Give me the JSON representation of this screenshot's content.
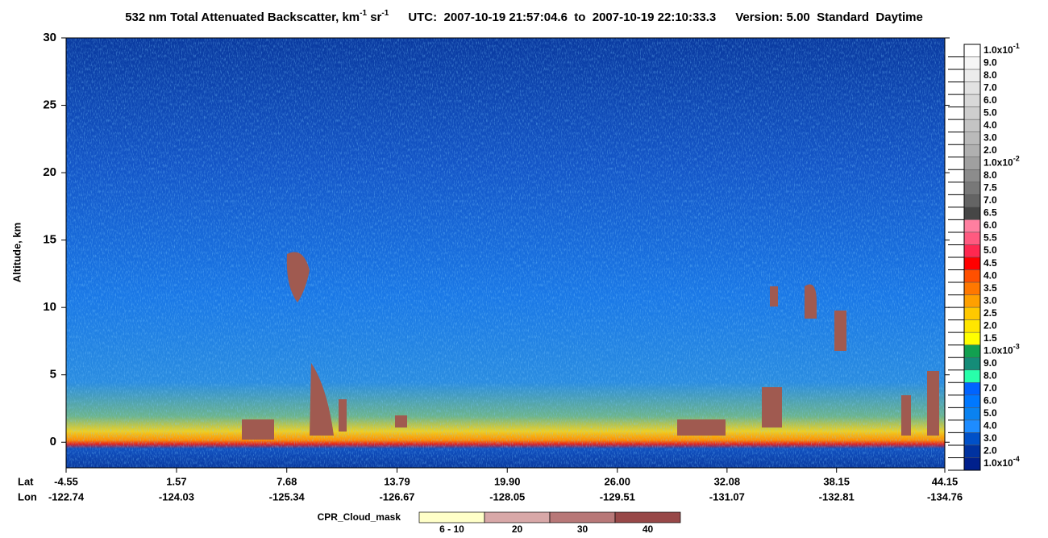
{
  "chart_data": {
    "type": "curtain",
    "title": {
      "product": "532 nm Total Attenuated Backscatter, km",
      "unit_exp_1": "-1",
      "unit_sr": " sr",
      "unit_exp_2": "-1",
      "utc": "UTC:  2007-10-19 21:57:04.6  to  2007-10-19 22:10:33.3",
      "version": "Version: 5.00  Standard  Daytime"
    },
    "y_label": "Altitude, km",
    "ylim": [
      -1.9,
      30
    ],
    "yticks": [
      0,
      5,
      10,
      15,
      20,
      25,
      30
    ],
    "x_row_labels": [
      "Lat",
      "Lon"
    ],
    "xlim": [
      -4.55,
      44.15
    ],
    "xticks": [
      -4.55,
      1.57,
      7.68,
      13.79,
      {
        "value": 19.9,
        "label": "19.90"
      },
      {
        "value": 26,
        "label": "26.00"
      },
      32.08,
      38.15,
      44.15
    ],
    "lon_labels": [
      -122.74,
      -124.03,
      -125.34,
      -126.67,
      -128.05,
      -129.51,
      -131.07,
      -132.81,
      -134.76
    ],
    "colorbar": [
      {
        "label": "1.0x10",
        "sup": "-1",
        "color": "#ffffff"
      },
      {
        "label": "9.0",
        "color": "#f6f6f6"
      },
      {
        "label": "8.0",
        "color": "#ececec"
      },
      {
        "label": "7.0",
        "color": "#e2e2e2"
      },
      {
        "label": "6.0",
        "color": "#d8d8d8"
      },
      {
        "label": "5.0",
        "color": "#cecece"
      },
      {
        "label": "4.0",
        "color": "#c4c4c4"
      },
      {
        "label": "3.0",
        "color": "#bababa"
      },
      {
        "label": "2.0",
        "color": "#b0b0b0"
      },
      {
        "label": "1.0x10",
        "sup": "-2",
        "color": "#a0a0a0"
      },
      {
        "label": "8.0",
        "color": "#8c8c8c"
      },
      {
        "label": "7.5",
        "color": "#787878"
      },
      {
        "label": "7.0",
        "color": "#646464"
      },
      {
        "label": "6.5",
        "color": "#464646"
      },
      {
        "label": "6.0",
        "color": "#ff7fa0"
      },
      {
        "label": "5.5",
        "color": "#ff5a80"
      },
      {
        "label": "5.0",
        "color": "#ff2850"
      },
      {
        "label": "4.5",
        "color": "#ff0000"
      },
      {
        "label": "4.0",
        "color": "#ff5000"
      },
      {
        "label": "3.5",
        "color": "#ff7800"
      },
      {
        "label": "3.0",
        "color": "#ffa000"
      },
      {
        "label": "2.5",
        "color": "#ffc800"
      },
      {
        "label": "2.0",
        "color": "#ffe600"
      },
      {
        "label": "1.5",
        "color": "#ffff00"
      },
      {
        "label": "1.0x10",
        "sup": "-3",
        "color": "#12a050"
      },
      {
        "label": "9.0",
        "color": "#148c78"
      },
      {
        "label": "8.0",
        "color": "#28ffaa"
      },
      {
        "label": "7.0",
        "color": "#0064ff"
      },
      {
        "label": "6.0",
        "color": "#0078ff"
      },
      {
        "label": "5.0",
        "color": "#0a82f0"
      },
      {
        "label": "4.0",
        "color": "#1e8cff"
      },
      {
        "label": "3.0",
        "color": "#0050c8"
      },
      {
        "label": "2.0",
        "color": "#0032a0"
      },
      {
        "label": "1.0x10",
        "sup": "-4",
        "color": "#00208c"
      }
    ],
    "cloud_mask": {
      "title": "CPR_Cloud_mask",
      "labels": [
        "6 - 10",
        "20",
        "30",
        "40"
      ],
      "colors": [
        "#ffffc8",
        "#d8a8a8",
        "#b87878",
        "#984848"
      ]
    }
  }
}
